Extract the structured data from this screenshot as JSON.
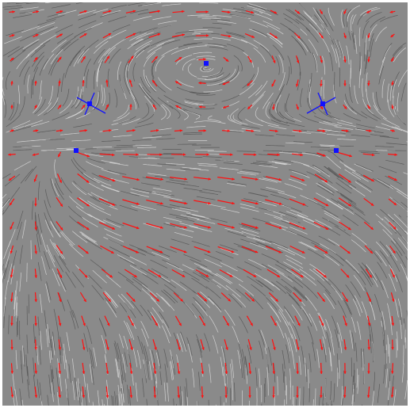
{
  "colors": {
    "background": "#8a8a8a",
    "streak_light": "#e8e8e8",
    "streak_dark": "#3c3c3c",
    "arrow": "#ff1010",
    "critical_point": "#1010ff",
    "separatrix": "#1010ff"
  },
  "visualization": {
    "style": "line-integral-convolution texture with red glyph arrows",
    "critical_points": [
      {
        "type": "center",
        "label": "center-top"
      },
      {
        "type": "saddle",
        "label": "saddle-left"
      },
      {
        "type": "saddle",
        "label": "saddle-right"
      },
      {
        "type": "node",
        "label": "node-left"
      },
      {
        "type": "node",
        "label": "node-right"
      }
    ]
  }
}
